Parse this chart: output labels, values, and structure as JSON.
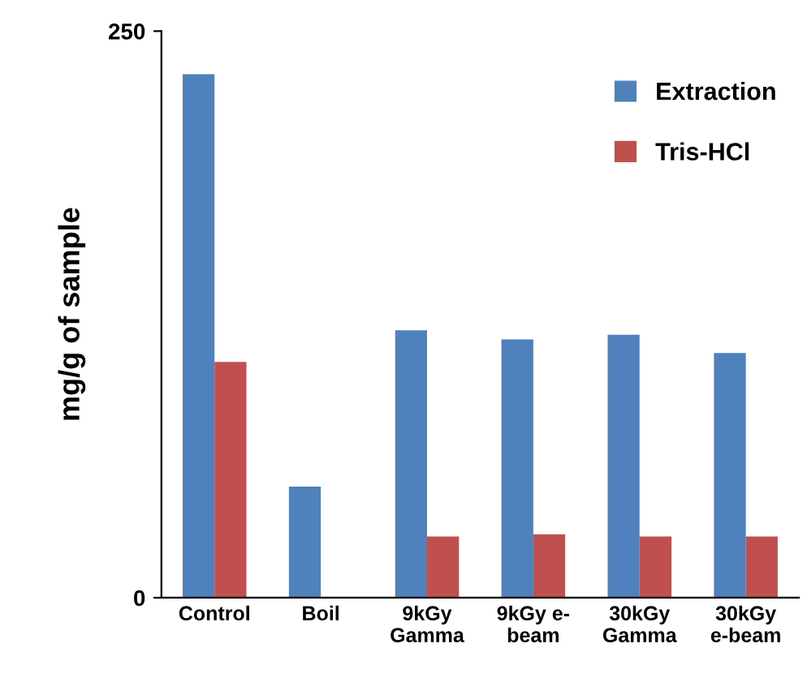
{
  "chart_data": {
    "type": "bar",
    "ylabel": "mg/g of sample",
    "categories": [
      "Control",
      "Boil",
      "9kGy\nGamma",
      "9kGy e-\nbeam",
      "30kGy\nGamma",
      "30kGy\ne-beam"
    ],
    "series": [
      {
        "name": "Extraction",
        "color": "#4f81bd",
        "values": [
          231,
          49,
          118,
          114,
          116,
          108
        ]
      },
      {
        "name": "Tris-HCl",
        "color": "#c0504d",
        "values": [
          104,
          null,
          27,
          28,
          27,
          27
        ]
      }
    ],
    "ylim": [
      0,
      250
    ],
    "yticks": [
      0,
      250
    ],
    "grid": false,
    "legend": "top right"
  }
}
